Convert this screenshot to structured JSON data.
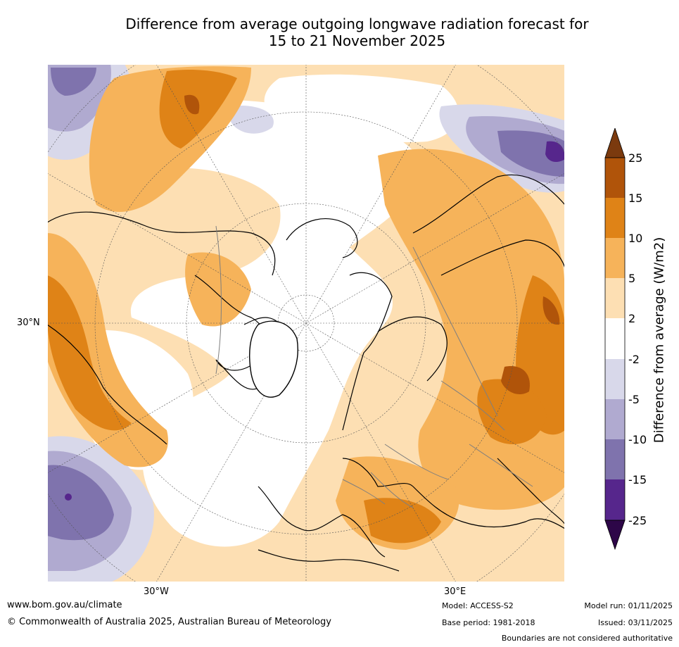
{
  "title_line1": "Difference from average outgoing longwave radiation forecast for",
  "title_line2": "15 to 21 November 2025",
  "map": {
    "lat_label": "30°N",
    "lon_labels": [
      "30°W",
      "30°E"
    ]
  },
  "colorbar": {
    "label": "Difference from average (W/m2)",
    "ticks": [
      "25",
      "15",
      "10",
      "5",
      "2",
      "-2",
      "-5",
      "-10",
      "-15",
      "-25"
    ],
    "colors": {
      "over": "#7b3a0e",
      "b15_25": "#b0540a",
      "b10_15": "#df8317",
      "b5_10": "#f6b35a",
      "b2_5": "#fddfb3",
      "b_neutral": "#ffffff",
      "bm5_m2": "#d8d8ea",
      "bm10_m5": "#b0aad0",
      "bm15_m10": "#7f73ad",
      "bm25_m15": "#56268c",
      "under": "#2d0648"
    }
  },
  "footer": {
    "website": "www.bom.gov.au/climate",
    "copyright": "© Commonwealth of Australia 2025, Australian Bureau of Meteorology",
    "model": "Model: ACCESS-S2",
    "base_period": "Base period: 1981-2018",
    "model_run": "Model run: 01/11/2025",
    "issued": "Issued: 03/11/2025",
    "disclaimer": "Boundaries are not considered authoritative"
  }
}
